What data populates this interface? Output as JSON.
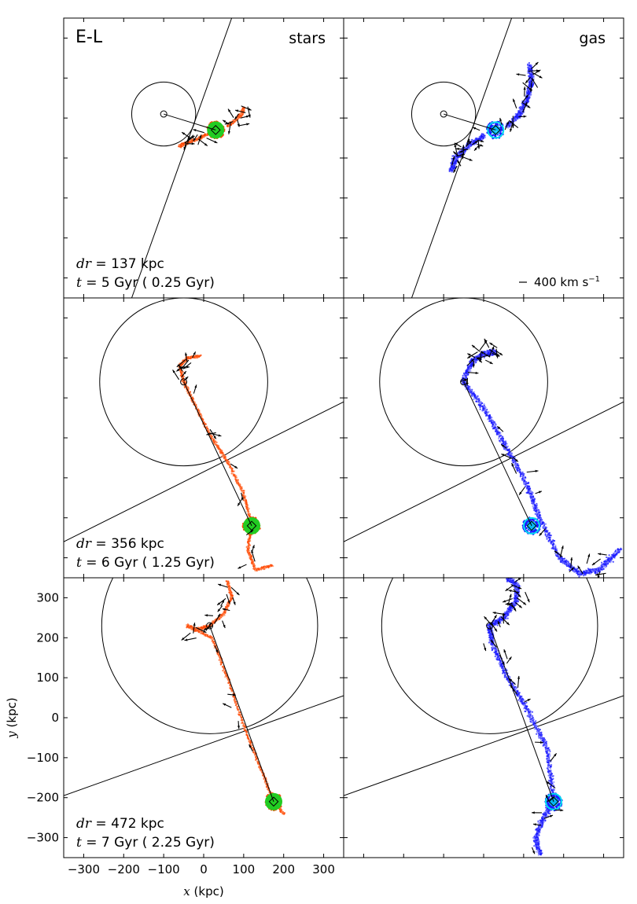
{
  "chart_data": {
    "type": "scatter",
    "title": "E-L",
    "column_labels": [
      "stars",
      "gas"
    ],
    "xlabel_var": "x",
    "xlabel_unit": "(kpc)",
    "ylabel_var": "y",
    "ylabel_unit": "(kpc)",
    "xlim": [
      -350,
      350
    ],
    "ylim": [
      -350,
      350
    ],
    "xticks": [
      -300,
      -200,
      -100,
      0,
      100,
      200,
      300
    ],
    "yticks": [
      -300,
      -200,
      -100,
      0,
      100,
      200,
      300
    ],
    "xtick_labels": [
      "−300",
      "−200",
      "−100",
      "0",
      "100",
      "200",
      "300"
    ],
    "ytick_labels": [
      "−300",
      "−200",
      "−100",
      "0",
      "100",
      "200",
      "300"
    ],
    "velocity_scale_label": "400 km s",
    "velocity_scale_exp": "−1",
    "colors": {
      "stars": "#ff4500",
      "stars_light": "#ff8c5a",
      "star_core": "#22cc22",
      "gas": "#1a1aff",
      "gas_light": "#8080ff",
      "gas_core": "#00ddee",
      "axis": "#000000"
    },
    "rows": [
      {
        "dr_prefix": "dr = ",
        "dr_value": "137 kpc",
        "time_prefix": "t",
        "time_text": " = 5 Gyr ( 0.25 Gyr)",
        "host_center": [
          -100,
          110
        ],
        "host_radius": 80,
        "sat_center": [
          30,
          70
        ],
        "line_points": [
          [
            -180,
            -350
          ],
          [
            70,
            350
          ]
        ],
        "star_arm_up": [
          [
            60,
            80
          ],
          [
            80,
            95
          ],
          [
            95,
            110
          ],
          [
            100,
            125
          ]
        ],
        "star_arm_down": [
          [
            10,
            60
          ],
          [
            -20,
            45
          ],
          [
            -50,
            35
          ],
          [
            -60,
            30
          ]
        ],
        "gas_arm_up": [
          [
            60,
            80
          ],
          [
            90,
            110
          ],
          [
            110,
            150
          ],
          [
            120,
            190
          ],
          [
            115,
            230
          ]
        ],
        "gas_arm_down": [
          [
            0,
            55
          ],
          [
            -40,
            30
          ],
          [
            -70,
            0
          ],
          [
            -80,
            -30
          ]
        ]
      },
      {
        "dr_prefix": "dr = ",
        "dr_value": "356 kpc",
        "time_prefix": "t",
        "time_text": " = 6 Gyr ( 1.25 Gyr)",
        "host_center": [
          -50,
          140
        ],
        "host_radius": 210,
        "sat_center": [
          120,
          -220
        ],
        "line_points": [
          [
            -350,
            -260
          ],
          [
            350,
            90
          ]
        ],
        "star_arm_up": [
          [
            -50,
            140
          ],
          [
            -60,
            180
          ],
          [
            -40,
            200
          ],
          [
            -10,
            205
          ]
        ],
        "star_arm_down": [
          [
            -50,
            140
          ],
          [
            -20,
            80
          ],
          [
            20,
            0
          ],
          [
            60,
            -60
          ],
          [
            100,
            -140
          ],
          [
            120,
            -220
          ],
          [
            110,
            -280
          ],
          [
            130,
            -330
          ],
          [
            170,
            -320
          ]
        ],
        "gas_arm_up": [
          [
            -50,
            140
          ],
          [
            -30,
            190
          ],
          [
            0,
            210
          ],
          [
            30,
            215
          ]
        ],
        "gas_arm_down": [
          [
            -50,
            140
          ],
          [
            10,
            60
          ],
          [
            60,
            -30
          ],
          [
            110,
            -120
          ],
          [
            140,
            -200
          ],
          [
            190,
            -300
          ],
          [
            240,
            -340
          ],
          [
            290,
            -330
          ],
          [
            340,
            -280
          ]
        ]
      },
      {
        "dr_prefix": "dr = ",
        "dr_value": "472 kpc",
        "time_prefix": "t",
        "time_text": " = 7 Gyr ( 2.25 Gyr)",
        "host_center": [
          15,
          230
        ],
        "host_radius": 270,
        "sat_center": [
          175,
          -210
        ],
        "line_points": [
          [
            -350,
            -195
          ],
          [
            350,
            55
          ]
        ],
        "star_arm_up": [
          [
            15,
            230
          ],
          [
            50,
            260
          ],
          [
            70,
            300
          ],
          [
            60,
            340
          ]
        ],
        "star_arm_down": [
          [
            15,
            230
          ],
          [
            -20,
            220
          ],
          [
            -40,
            230
          ],
          [
            20,
            200
          ],
          [
            60,
            100
          ],
          [
            100,
            -20
          ],
          [
            140,
            -120
          ],
          [
            175,
            -210
          ],
          [
            200,
            -240
          ]
        ],
        "gas_arm_up": [
          [
            15,
            230
          ],
          [
            50,
            250
          ],
          [
            80,
            290
          ],
          [
            85,
            330
          ],
          [
            60,
            350
          ]
        ],
        "gas_arm_down": [
          [
            15,
            230
          ],
          [
            20,
            190
          ],
          [
            60,
            100
          ],
          [
            110,
            20
          ],
          [
            160,
            -80
          ],
          [
            175,
            -210
          ],
          [
            150,
            -250
          ],
          [
            130,
            -300
          ],
          [
            140,
            -340
          ]
        ]
      }
    ]
  }
}
